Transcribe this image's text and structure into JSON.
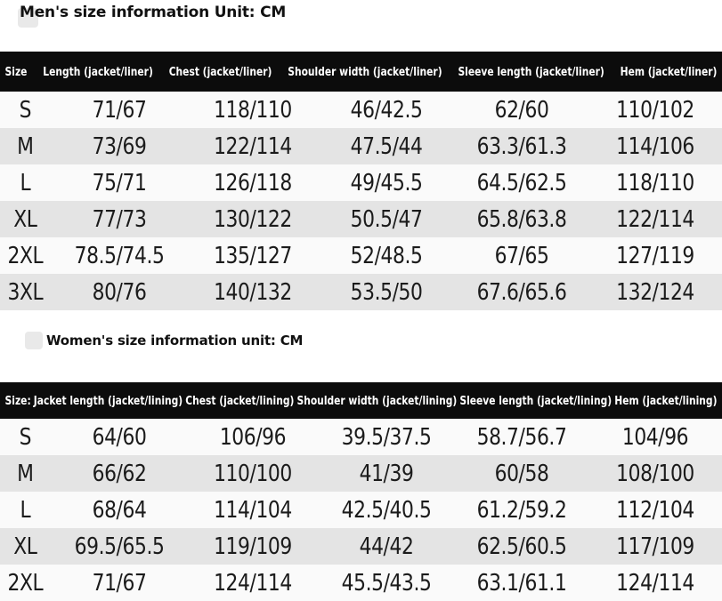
{
  "colors": {
    "page_bg": "#ffffff",
    "table_header_bg": "#0c0c0c",
    "table_header_text": "#ffffff",
    "row_even_bg": "#fafafa",
    "row_odd_bg": "#e4e4e4",
    "cell_text": "#1b1b1b",
    "title_text": "#111111",
    "badge_bg": "#e9e9e9"
  },
  "men_section": {
    "title": "Men's size information Unit: CM",
    "columns": [
      "Size",
      "Length (jacket/liner)",
      "Chest (jacket/liner)",
      "Shoulder width (jacket/liner)",
      "Sleeve length (jacket/liner)",
      "Hem (jacket/liner)"
    ],
    "rows": [
      [
        "S",
        "71/67",
        "118/110",
        "46/42.5",
        "62/60",
        "110/102"
      ],
      [
        "M",
        "73/69",
        "122/114",
        "47.5/44",
        "63.3/61.3",
        "114/106"
      ],
      [
        "L",
        "75/71",
        "126/118",
        "49/45.5",
        "64.5/62.5",
        "118/110"
      ],
      [
        "XL",
        "77/73",
        "130/122",
        "50.5/47",
        "65.8/63.8",
        "122/114"
      ],
      [
        "2XL",
        "78.5/74.5",
        "135/127",
        "52/48.5",
        "67/65",
        "127/119"
      ],
      [
        "3XL",
        "80/76",
        "140/132",
        "53.5/50",
        "67.6/65.6",
        "132/124"
      ]
    ]
  },
  "women_section": {
    "title": "Women's size information unit: CM",
    "columns": [
      "Size:",
      "Jacket length (jacket/lining)",
      "Chest (jacket/lining)",
      "Shoulder width (jacket/lining)",
      "Sleeve length (jacket/lining)",
      "Hem (jacket/lining)"
    ],
    "rows": [
      [
        "S",
        "64/60",
        "106/96",
        "39.5/37.5",
        "58.7/56.7",
        "104/96"
      ],
      [
        "M",
        "66/62",
        "110/100",
        "41/39",
        "60/58",
        "108/100"
      ],
      [
        "L",
        "68/64",
        "114/104",
        "42.5/40.5",
        "61.2/59.2",
        "112/104"
      ],
      [
        "XL",
        "69.5/65.5",
        "119/109",
        "44/42",
        "62.5/60.5",
        "117/109"
      ],
      [
        "2XL",
        "71/67",
        "124/114",
        "45.5/43.5",
        "63.1/61.1",
        "124/114"
      ]
    ]
  }
}
